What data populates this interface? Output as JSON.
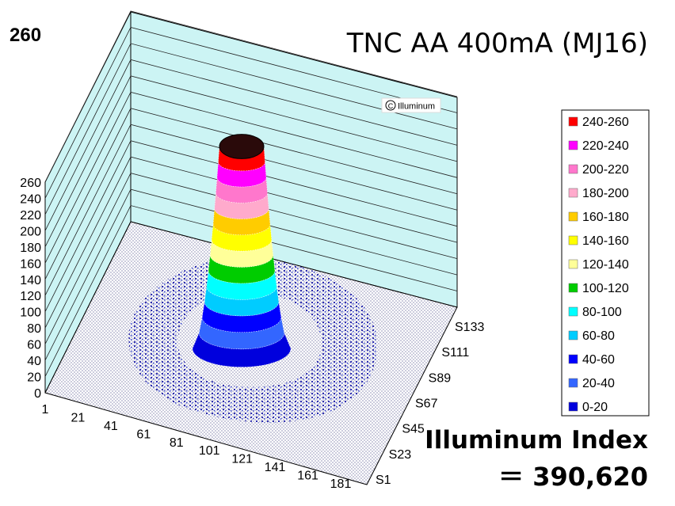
{
  "chart_data": {
    "type": "surface3d",
    "title": "TNC AA 400mA (MJ16)",
    "peak_label": "260",
    "copyright": "Illuminum",
    "index_label": "Illuminum Index",
    "index_value": "＝ 390,620",
    "zlim": [
      0,
      260
    ],
    "z_ticks": [
      "0",
      "20",
      "40",
      "60",
      "80",
      "100",
      "120",
      "140",
      "160",
      "180",
      "200",
      "220",
      "240",
      "260"
    ],
    "x_ticks": [
      "1",
      "21",
      "41",
      "61",
      "81",
      "101",
      "121",
      "141",
      "161",
      "181"
    ],
    "y_ticks": [
      "S1",
      "S23",
      "S45",
      "S67",
      "S89",
      "S111",
      "S133"
    ],
    "peak_value": 260,
    "legend": [
      {
        "label": "240-260",
        "color": "#ff0000"
      },
      {
        "label": "220-240",
        "color": "#ff00ff"
      },
      {
        "label": "200-220",
        "color": "#ff77cc"
      },
      {
        "label": "180-200",
        "color": "#ffaacc"
      },
      {
        "label": "160-180",
        "color": "#ffcc00"
      },
      {
        "label": "140-160",
        "color": "#ffff00"
      },
      {
        "label": "120-140",
        "color": "#ffff99"
      },
      {
        "label": "100-120",
        "color": "#00cc00"
      },
      {
        "label": "80-100",
        "color": "#00ffff"
      },
      {
        "label": "60-80",
        "color": "#00ccff"
      },
      {
        "label": "40-60",
        "color": "#0000ff"
      },
      {
        "label": "20-40",
        "color": "#3366ff"
      },
      {
        "label": "0-20",
        "color": "#0000dd"
      }
    ]
  }
}
